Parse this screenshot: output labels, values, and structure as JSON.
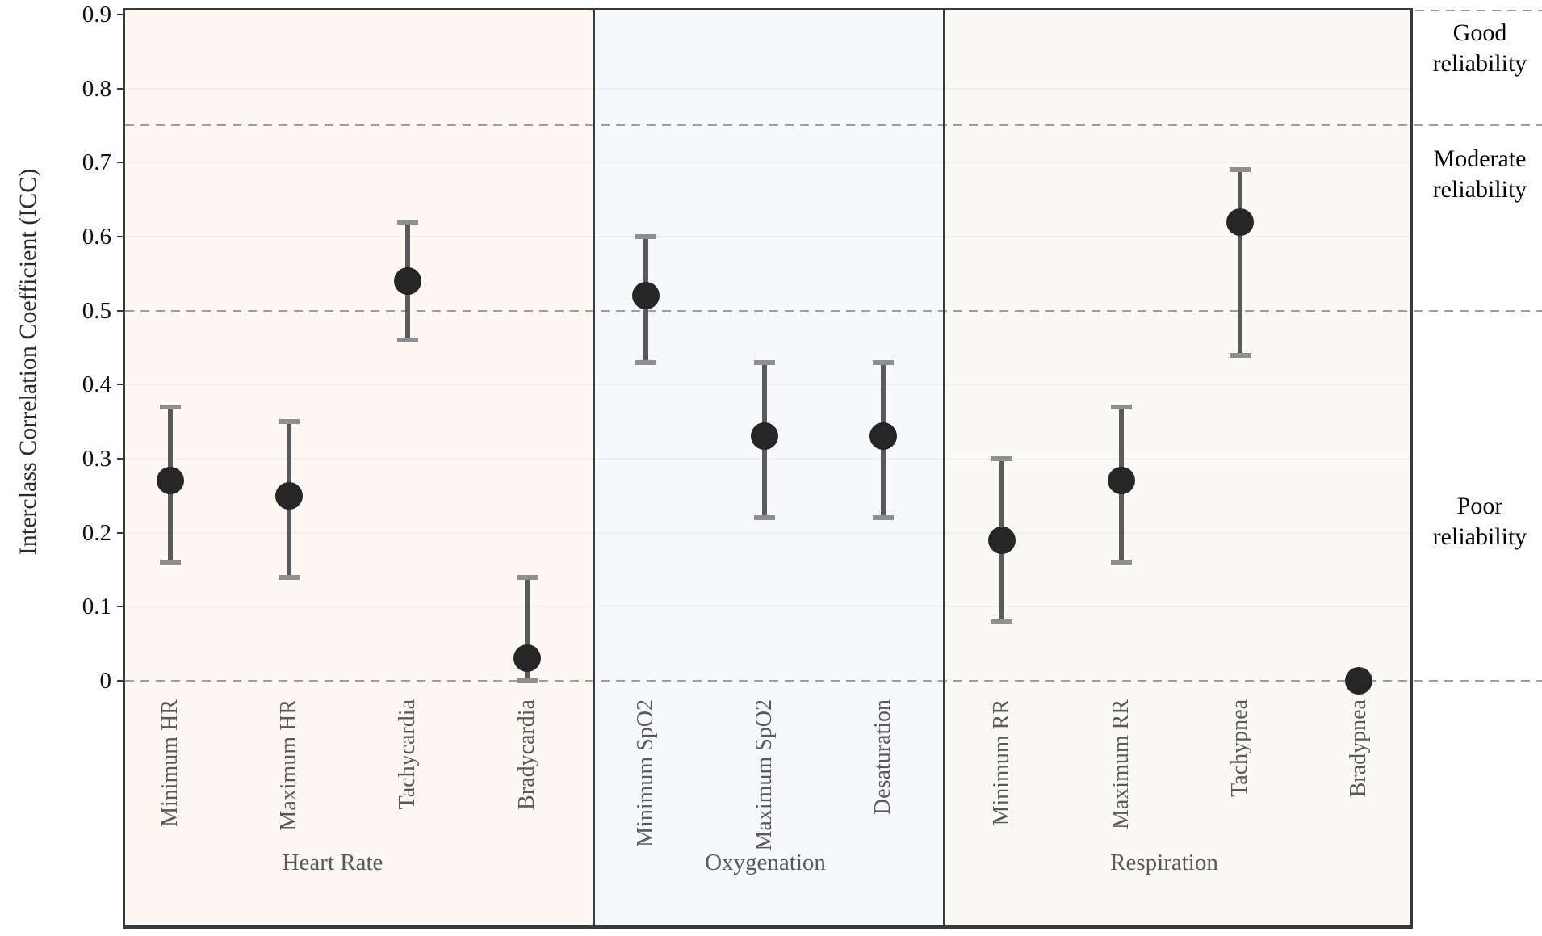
{
  "chart_data": {
    "type": "scatter",
    "title": "",
    "ylabel": "Interclass Correlation Coefficient (ICC)",
    "xlabel": "",
    "ylim": [
      0,
      0.9
    ],
    "ytick_values": [
      0.9,
      0.8,
      0.7,
      0.6,
      0.5,
      0.4,
      0.3,
      0.2,
      0.1,
      0
    ],
    "ytick_labels": [
      "0.9",
      "0.8",
      "0.7",
      "0.6",
      "0.5",
      "0.4",
      "0.3",
      "0.2",
      "0.1",
      "0"
    ],
    "grid": "faint horizontal line every 0.1; dashed reference lines extend past right edge of plot",
    "threshold_lines": [
      {
        "value": 0.75,
        "style": "dashed"
      },
      {
        "value": 0.5,
        "style": "dashed"
      },
      {
        "value": 0,
        "style": "dashed"
      }
    ],
    "right_labels": [
      {
        "text": "Good reliability",
        "band": "above 0.75"
      },
      {
        "text": "Moderate reliability",
        "band": "0.5 to 0.75"
      },
      {
        "text": "Poor reliability",
        "band": "below 0.5"
      }
    ],
    "groups": [
      {
        "name": "Heart Rate",
        "panel_color": "#fdf8f2",
        "points": [
          {
            "label": "Minimum HR",
            "icc": 0.27,
            "ci_low": 0.16,
            "ci_high": 0.37
          },
          {
            "label": "Maximum HR",
            "icc": 0.25,
            "ci_low": 0.14,
            "ci_high": 0.35
          },
          {
            "label": "Tachycardia",
            "icc": 0.54,
            "ci_low": 0.46,
            "ci_high": 0.62
          },
          {
            "label": "Bradycardia",
            "icc": 0.03,
            "ci_low": 0.0,
            "ci_high": 0.14
          }
        ]
      },
      {
        "name": "Oxygenation",
        "panel_color": "#f6f8fb",
        "points": [
          {
            "label": "Minimum SpO2",
            "icc": 0.52,
            "ci_low": 0.43,
            "ci_high": 0.6
          },
          {
            "label": "Maximum SpO2",
            "icc": 0.33,
            "ci_low": 0.22,
            "ci_high": 0.43
          },
          {
            "label": "Desaturation",
            "icc": 0.33,
            "ci_low": 0.22,
            "ci_high": 0.43
          }
        ]
      },
      {
        "name": "Respiration",
        "panel_color": "#faf9f6",
        "points": [
          {
            "label": "Minimum RR",
            "icc": 0.19,
            "ci_low": 0.08,
            "ci_high": 0.3
          },
          {
            "label": "Maximum RR",
            "icc": 0.27,
            "ci_low": 0.16,
            "ci_high": 0.37
          },
          {
            "label": "Tachypnea",
            "icc": 0.62,
            "ci_low": 0.44,
            "ci_high": 0.69
          },
          {
            "label": "Bradypnea",
            "icc": 0.0,
            "ci_low": null,
            "ci_high": null
          }
        ]
      }
    ],
    "colors": {
      "point": "#262626",
      "error_bar": "#5a5a5a",
      "error_cap": "#8f8f8f",
      "frame": "#3a3a3a",
      "dashed_line": "#9e9e9e",
      "label_gray": "#595959"
    }
  }
}
